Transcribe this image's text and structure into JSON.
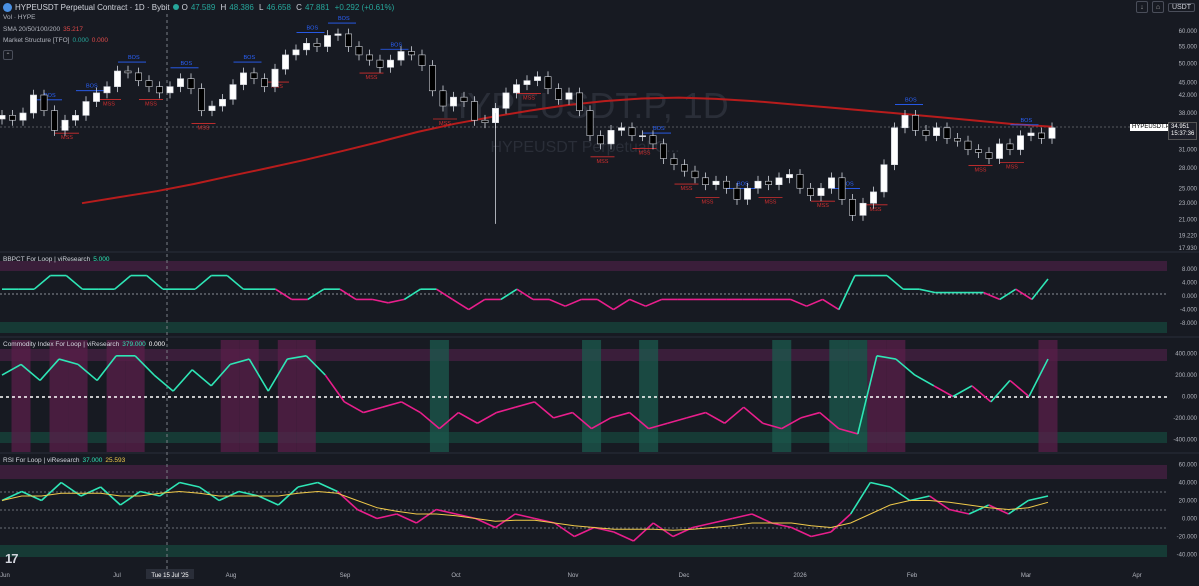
{
  "header": {
    "symbol_title": "HYPEUSDT Perpetual Contract · 1D · Bybit",
    "ohlc": {
      "o_label": "O",
      "o": "47.589",
      "h_label": "H",
      "h": "48.386",
      "l_label": "L",
      "l": "46.658",
      "c_label": "C",
      "c": "47.881",
      "chg": "+0.292 (+0.61%)"
    },
    "volume_legend": "Vol · HYPE",
    "currency": "USDT",
    "sma_legend": "SMA 20/50/100/200",
    "sma_value": "35.217",
    "ms_legend": "Market Structure [TFO]",
    "ms_v1": "0.000",
    "ms_v2": "0.000"
  },
  "watermark": {
    "line1": "HYPEUSDT.P, 1D",
    "line2": "HYPEUSDT Perpetual C..."
  },
  "price_tag": {
    "label": "HYPEUSDT.P",
    "price": "34.951",
    "countdown": "15:37:36"
  },
  "panes": {
    "bbpct": {
      "title": "BBPCT For Loop | viResearch",
      "value": "5.000"
    },
    "cci": {
      "title": "Commodity Index For Loop | viResearch",
      "value1": "379.000",
      "value2": "0.000"
    },
    "rsi": {
      "title": "RSI For Loop | viResearch",
      "value1": "37.000",
      "value2": "25.593"
    }
  },
  "crosshair_date": "Tue 15 Jul '25",
  "tv_logo": "17",
  "chart_data": {
    "type": "line",
    "colors": {
      "up": "#ffffff",
      "down": "#000000",
      "sma200": "#b71c1c",
      "bos": "#2962ff",
      "mss": "#d32f2f",
      "osc_up": "#2ee6b6",
      "osc_down": "#e91e8c"
    },
    "xaxis": {
      "ticks": [
        "Jun",
        "Jul",
        "Tue 15 Jul '25",
        "Aug",
        "Sep",
        "Oct",
        "Nov",
        "Dec",
        "2026",
        "Feb",
        "Mar",
        "Apr"
      ]
    },
    "price_axis": {
      "ticks": [
        "60.000",
        "55.000",
        "50.000",
        "45.000",
        "42.000",
        "38.000",
        "35.000",
        "31.000",
        "28.000",
        "25.000",
        "23.000",
        "21.000",
        "19.220",
        "17.930"
      ],
      "scale": "log"
    },
    "price_series": [
      37.5,
      36.5,
      38.0,
      42.0,
      38.5,
      34.5,
      36.5,
      37.5,
      40.5,
      42.5,
      44.0,
      48.0,
      47.5,
      45.5,
      44.0,
      42.5,
      44.0,
      46.0,
      43.5,
      38.5,
      39.5,
      41.0,
      44.5,
      47.5,
      46.0,
      44.0,
      48.5,
      52.5,
      54.0,
      56.0,
      55.0,
      58.5,
      59.0,
      55.0,
      52.5,
      51.0,
      49.0,
      51.0,
      53.5,
      52.5,
      49.5,
      43.0,
      39.5,
      41.5,
      40.5,
      36.5,
      36.0,
      39.0,
      42.5,
      44.5,
      45.5,
      46.5,
      43.5,
      41.0,
      42.5,
      38.5,
      33.5,
      32.0,
      34.5,
      35.0,
      33.5,
      33.5,
      32.0,
      29.5,
      28.5,
      27.5,
      26.5,
      25.5,
      26.0,
      25.0,
      23.5,
      25.0,
      26.0,
      25.5,
      26.5,
      27.0,
      25.0,
      24.0,
      25.0,
      26.5,
      23.5,
      21.5,
      23.0,
      24.5,
      28.5,
      35.0,
      37.5,
      34.5,
      33.5,
      35.0,
      33.0,
      32.5,
      31.0,
      30.5,
      29.5,
      32.0,
      31.0,
      33.5,
      34.0,
      33.0,
      35.0
    ],
    "sma200": [
      23.0,
      23.8,
      24.6,
      25.6,
      26.8,
      28.0,
      29.3,
      30.8,
      32.4,
      34.2,
      35.8,
      37.2,
      38.5,
      39.7,
      40.6,
      41.2,
      41.4,
      41.1,
      40.6,
      39.9,
      39.2,
      38.5,
      37.8,
      37.1,
      36.4,
      35.7,
      35.2
    ],
    "bos_labels": [
      "BOS",
      "BOS",
      "BOS",
      "BOS",
      "BOS",
      "BOS",
      "BOS",
      "BOS",
      "BOS",
      "BOS",
      "BOS",
      "BOS",
      "BOS"
    ],
    "mss_labels": [
      "MSS",
      "MSS",
      "MSS",
      "MSS",
      "MSS",
      "MSS",
      "MSS",
      "MSS",
      "MSS",
      "MSS",
      "MSS",
      "MSS",
      "MSS",
      "MSS",
      "MSS",
      "MSS",
      "MSS"
    ],
    "bbpct": {
      "axis": [
        "8.000",
        "4.000",
        "0.000",
        "-4.000",
        "-8.000"
      ],
      "range": [
        -10,
        10
      ],
      "values": [
        2,
        2,
        2,
        6,
        6,
        2,
        2,
        2,
        6,
        6,
        2,
        2,
        2,
        6,
        6,
        2,
        2,
        2,
        -1,
        -1,
        2,
        2,
        -1,
        -1,
        -2,
        -1,
        2,
        2,
        -1,
        -4,
        -1,
        -1,
        2,
        -1,
        -1,
        -3,
        -1,
        -1,
        -4,
        -1,
        -3,
        -1,
        -1,
        -1,
        -1,
        -1,
        -1,
        -1,
        -1,
        -1,
        -3,
        -1,
        -4,
        6,
        6,
        6,
        2,
        2,
        1,
        1,
        1,
        1,
        -1,
        2,
        -1,
        5
      ]
    },
    "cci": {
      "axis": [
        "400.000",
        "200.000",
        "0.000",
        "-200.000",
        "-400.000"
      ],
      "range": [
        -500,
        500
      ],
      "values": [
        200,
        300,
        150,
        350,
        300,
        150,
        380,
        380,
        200,
        50,
        250,
        100,
        300,
        350,
        50,
        350,
        380,
        200,
        -50,
        -150,
        -100,
        -50,
        -150,
        -300,
        -150,
        -250,
        -150,
        -100,
        -50,
        -200,
        -150,
        -300,
        -200,
        -150,
        -300,
        -250,
        -200,
        -150,
        -250,
        -100,
        -250,
        -300,
        -200,
        -150,
        -300,
        -350,
        380,
        350,
        200,
        100,
        0,
        100,
        -50,
        150,
        0,
        350
      ]
    },
    "rsi": {
      "axis": [
        "60.000",
        "40.000",
        "20.000",
        "0.000",
        "-20.000",
        "-40.000"
      ],
      "range": [
        -55,
        65
      ],
      "values": [
        20,
        30,
        20,
        40,
        25,
        35,
        15,
        30,
        25,
        40,
        35,
        20,
        30,
        25,
        15,
        35,
        40,
        30,
        10,
        0,
        5,
        -5,
        10,
        5,
        0,
        -10,
        5,
        0,
        -5,
        -20,
        -10,
        -15,
        -25,
        -5,
        -20,
        -10,
        -5,
        0,
        5,
        -5,
        -10,
        -20,
        -15,
        5,
        40,
        35,
        20,
        25,
        10,
        5,
        15,
        5,
        20,
        25
      ],
      "signal": [
        20,
        25,
        25,
        28,
        28,
        28,
        25,
        25,
        28,
        30,
        28,
        25,
        25,
        25,
        25,
        28,
        30,
        28,
        20,
        12,
        8,
        5,
        5,
        3,
        0,
        -3,
        -2,
        -2,
        -5,
        -8,
        -10,
        -12,
        -12,
        -12,
        -13,
        -12,
        -10,
        -8,
        -5,
        -5,
        -5,
        -8,
        -10,
        -5,
        5,
        15,
        20,
        20,
        18,
        15,
        12,
        10,
        12,
        18
      ]
    }
  }
}
